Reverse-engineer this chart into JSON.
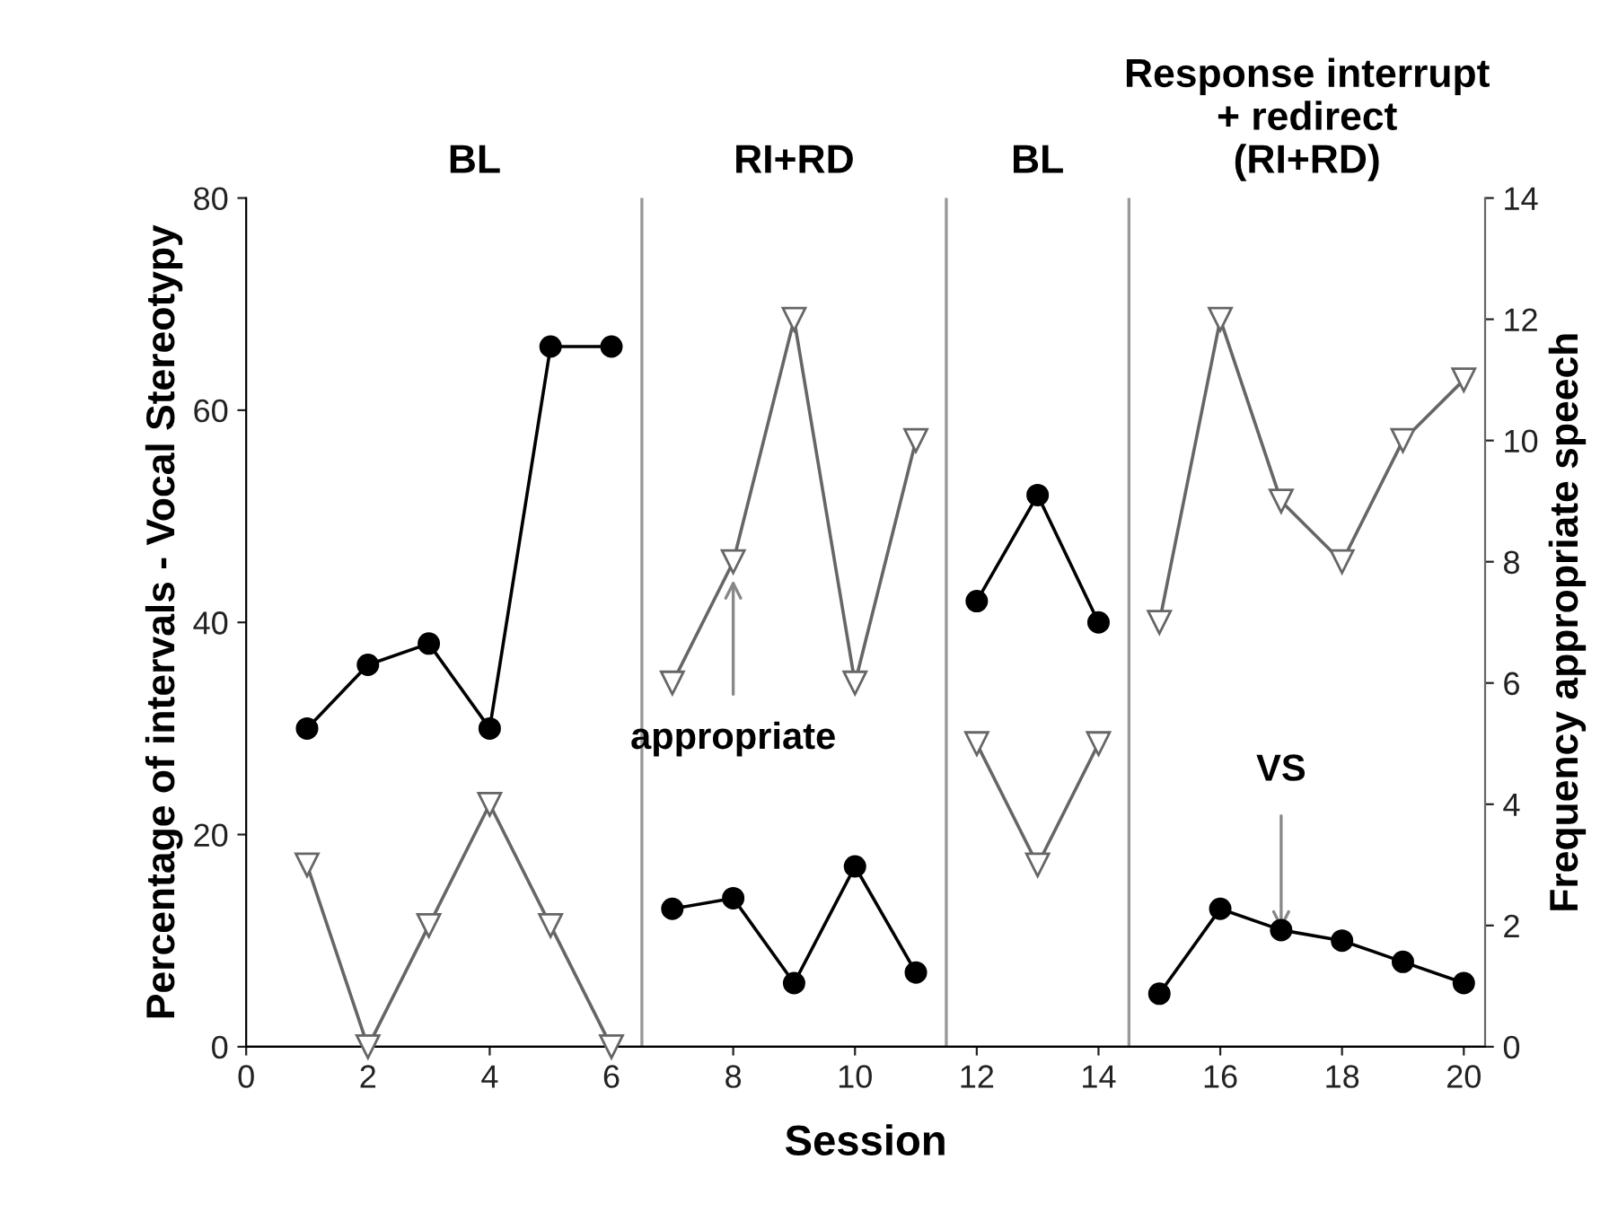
{
  "chart_data": {
    "type": "line",
    "xlabel": "Session",
    "ylabel": "Percentage of intervals - Vocal Stereotypy",
    "y2label": "Frequency appropriate speech",
    "x": [
      1,
      2,
      3,
      4,
      5,
      6,
      6.5,
      7,
      8,
      9,
      10,
      11,
      11.5,
      12,
      13,
      14,
      14.5,
      15,
      16,
      17,
      18,
      19,
      20
    ],
    "series": [
      {
        "color": "#000000",
        "marker": "circle",
        "values": [
          30,
          36,
          38,
          30,
          66,
          66,
          null,
          13,
          14,
          6,
          17,
          7,
          null,
          42,
          52,
          40,
          null,
          5,
          13,
          11,
          10,
          8,
          6
        ]
      },
      {
        "color": "#666666",
        "marker": "triangle",
        "axis": "y2",
        "values": [
          3,
          0,
          2,
          4,
          2,
          0,
          null,
          6,
          8,
          12,
          6,
          10,
          null,
          5,
          3,
          5,
          null,
          7,
          12,
          9,
          8,
          10,
          11
        ]
      }
    ],
    "xlim": [
      0,
      20.35
    ],
    "xticks": [
      0,
      2,
      4,
      6,
      8,
      10,
      12,
      14,
      16,
      18,
      20
    ],
    "ylim": [
      0,
      80
    ],
    "yticks": [
      0,
      20,
      40,
      60,
      80
    ],
    "y2lim": [
      0,
      14
    ],
    "y2ticks": [
      0,
      2,
      4,
      6,
      8,
      10,
      12,
      14
    ],
    "ref_lines": [
      {
        "axis": "x",
        "value": 6.5,
        "color": "#999999"
      },
      {
        "axis": "x",
        "value": 11.5,
        "color": "#999999"
      },
      {
        "axis": "x",
        "value": 14.5,
        "color": "#999999"
      }
    ],
    "annotations": [
      "BL",
      "RI+RD",
      "BL",
      "Response interrupt\n+ redirect\n(RI+RD)",
      {
        "text": "appropriate",
        "x": 8,
        "y": 44
      },
      {
        "text": "VS",
        "x": 17,
        "y": 11
      }
    ],
    "grid": false,
    "legend": false
  }
}
